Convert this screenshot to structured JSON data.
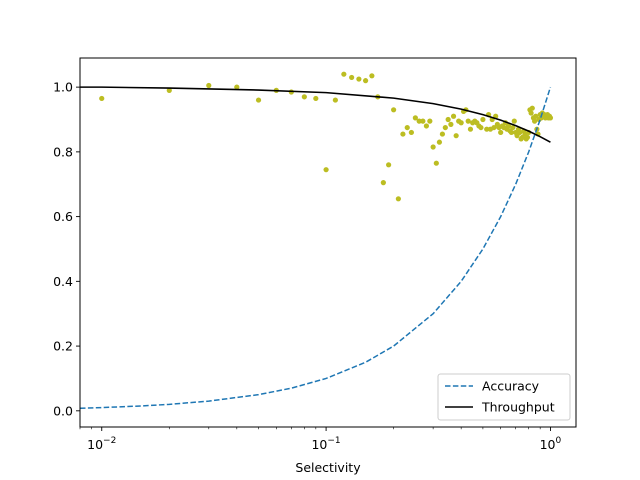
{
  "chart_data": {
    "type": "line",
    "title": "",
    "xlabel": "Selectivity",
    "ylabel": "",
    "xscale": "log",
    "xlim": [
      0.008,
      1.3
    ],
    "ylim": [
      -0.05,
      1.09
    ],
    "x_ticks": [
      {
        "value": 0.01,
        "base": "10",
        "exp": "−2"
      },
      {
        "value": 0.1,
        "base": "10",
        "exp": "−1"
      },
      {
        "value": 1,
        "base": "10",
        "exp": "0"
      }
    ],
    "y_ticks": [
      {
        "value": 0.0,
        "label": "0.0"
      },
      {
        "value": 0.2,
        "label": "0.2"
      },
      {
        "value": 0.4,
        "label": "0.4"
      },
      {
        "value": 0.6,
        "label": "0.6"
      },
      {
        "value": 0.8,
        "label": "0.8"
      },
      {
        "value": 1.0,
        "label": "1.0"
      }
    ],
    "grid": false,
    "legend": {
      "placement": "lower-right"
    },
    "colors": {
      "accuracy": "#1f77b4",
      "throughput": "#000000",
      "points": "#bcbd22"
    },
    "series": [
      {
        "name": "Accuracy",
        "style": "dashed",
        "color": "#1f77b4",
        "x": [
          0.008,
          0.01,
          0.015,
          0.02,
          0.03,
          0.05,
          0.07,
          0.1,
          0.15,
          0.2,
          0.3,
          0.4,
          0.5,
          0.6,
          0.7,
          0.8,
          0.9,
          1.0
        ],
        "y": [
          0.008,
          0.01,
          0.015,
          0.02,
          0.03,
          0.05,
          0.07,
          0.1,
          0.15,
          0.2,
          0.3,
          0.4,
          0.5,
          0.6,
          0.7,
          0.8,
          0.9,
          1.0
        ]
      },
      {
        "name": "Throughput",
        "style": "solid",
        "color": "#000000",
        "x": [
          0.008,
          0.01,
          0.02,
          0.05,
          0.1,
          0.2,
          0.3,
          0.4,
          0.5,
          0.6,
          0.7,
          0.8,
          0.9,
          1.0
        ],
        "y": [
          1.0,
          1.0,
          0.997,
          0.991,
          0.983,
          0.966,
          0.949,
          0.932,
          0.915,
          0.898,
          0.881,
          0.864,
          0.847,
          0.83
        ]
      }
    ],
    "scatter": {
      "color": "#bcbd22",
      "points": [
        [
          0.01,
          0.965
        ],
        [
          0.02,
          0.99
        ],
        [
          0.03,
          1.005
        ],
        [
          0.04,
          1.0
        ],
        [
          0.05,
          0.96
        ],
        [
          0.06,
          0.99
        ],
        [
          0.07,
          0.985
        ],
        [
          0.08,
          0.97
        ],
        [
          0.09,
          0.965
        ],
        [
          0.1,
          0.745
        ],
        [
          0.11,
          0.96
        ],
        [
          0.12,
          1.04
        ],
        [
          0.13,
          1.03
        ],
        [
          0.14,
          1.025
        ],
        [
          0.15,
          1.02
        ],
        [
          0.16,
          1.035
        ],
        [
          0.17,
          0.97
        ],
        [
          0.18,
          0.705
        ],
        [
          0.19,
          0.76
        ],
        [
          0.2,
          0.93
        ],
        [
          0.21,
          0.655
        ],
        [
          0.22,
          0.855
        ],
        [
          0.23,
          0.875
        ],
        [
          0.24,
          0.86
        ],
        [
          0.25,
          0.905
        ],
        [
          0.26,
          0.895
        ],
        [
          0.27,
          0.895
        ],
        [
          0.28,
          0.88
        ],
        [
          0.29,
          0.895
        ],
        [
          0.3,
          0.815
        ],
        [
          0.31,
          0.765
        ],
        [
          0.32,
          0.83
        ],
        [
          0.33,
          0.855
        ],
        [
          0.34,
          0.875
        ],
        [
          0.35,
          0.9
        ],
        [
          0.36,
          0.885
        ],
        [
          0.37,
          0.91
        ],
        [
          0.38,
          0.85
        ],
        [
          0.39,
          0.895
        ],
        [
          0.4,
          0.89
        ],
        [
          0.41,
          0.925
        ],
        [
          0.42,
          0.93
        ],
        [
          0.43,
          0.895
        ],
        [
          0.44,
          0.87
        ],
        [
          0.45,
          0.89
        ],
        [
          0.46,
          0.895
        ],
        [
          0.47,
          0.89
        ],
        [
          0.48,
          0.88
        ],
        [
          0.49,
          0.875
        ],
        [
          0.5,
          0.9
        ],
        [
          0.52,
          0.87
        ],
        [
          0.53,
          0.915
        ],
        [
          0.54,
          0.87
        ],
        [
          0.55,
          0.9
        ],
        [
          0.56,
          0.875
        ],
        [
          0.57,
          0.91
        ],
        [
          0.58,
          0.885
        ],
        [
          0.59,
          0.875
        ],
        [
          0.6,
          0.86
        ],
        [
          0.61,
          0.88
        ],
        [
          0.62,
          0.875
        ],
        [
          0.63,
          0.89
        ],
        [
          0.64,
          0.87
        ],
        [
          0.65,
          0.88
        ],
        [
          0.66,
          0.865
        ],
        [
          0.67,
          0.86
        ],
        [
          0.68,
          0.875
        ],
        [
          0.69,
          0.895
        ],
        [
          0.7,
          0.86
        ],
        [
          0.71,
          0.85
        ],
        [
          0.72,
          0.87
        ],
        [
          0.73,
          0.86
        ],
        [
          0.74,
          0.84
        ],
        [
          0.75,
          0.845
        ],
        [
          0.76,
          0.865
        ],
        [
          0.77,
          0.855
        ],
        [
          0.78,
          0.84
        ],
        [
          0.79,
          0.845
        ],
        [
          0.8,
          0.86
        ],
        [
          0.81,
          0.93
        ],
        [
          0.82,
          0.92
        ],
        [
          0.83,
          0.935
        ],
        [
          0.84,
          0.905
        ],
        [
          0.85,
          0.895
        ],
        [
          0.86,
          0.91
        ],
        [
          0.87,
          0.87
        ],
        [
          0.88,
          0.855
        ],
        [
          0.89,
          0.9
        ],
        [
          0.9,
          0.915
        ],
        [
          0.91,
          0.905
        ],
        [
          0.92,
          0.92
        ],
        [
          0.93,
          0.91
        ],
        [
          0.94,
          0.915
        ],
        [
          0.95,
          0.905
        ],
        [
          0.96,
          0.91
        ],
        [
          0.97,
          0.915
        ],
        [
          0.98,
          0.905
        ],
        [
          0.99,
          0.91
        ],
        [
          1.0,
          0.905
        ]
      ]
    }
  }
}
